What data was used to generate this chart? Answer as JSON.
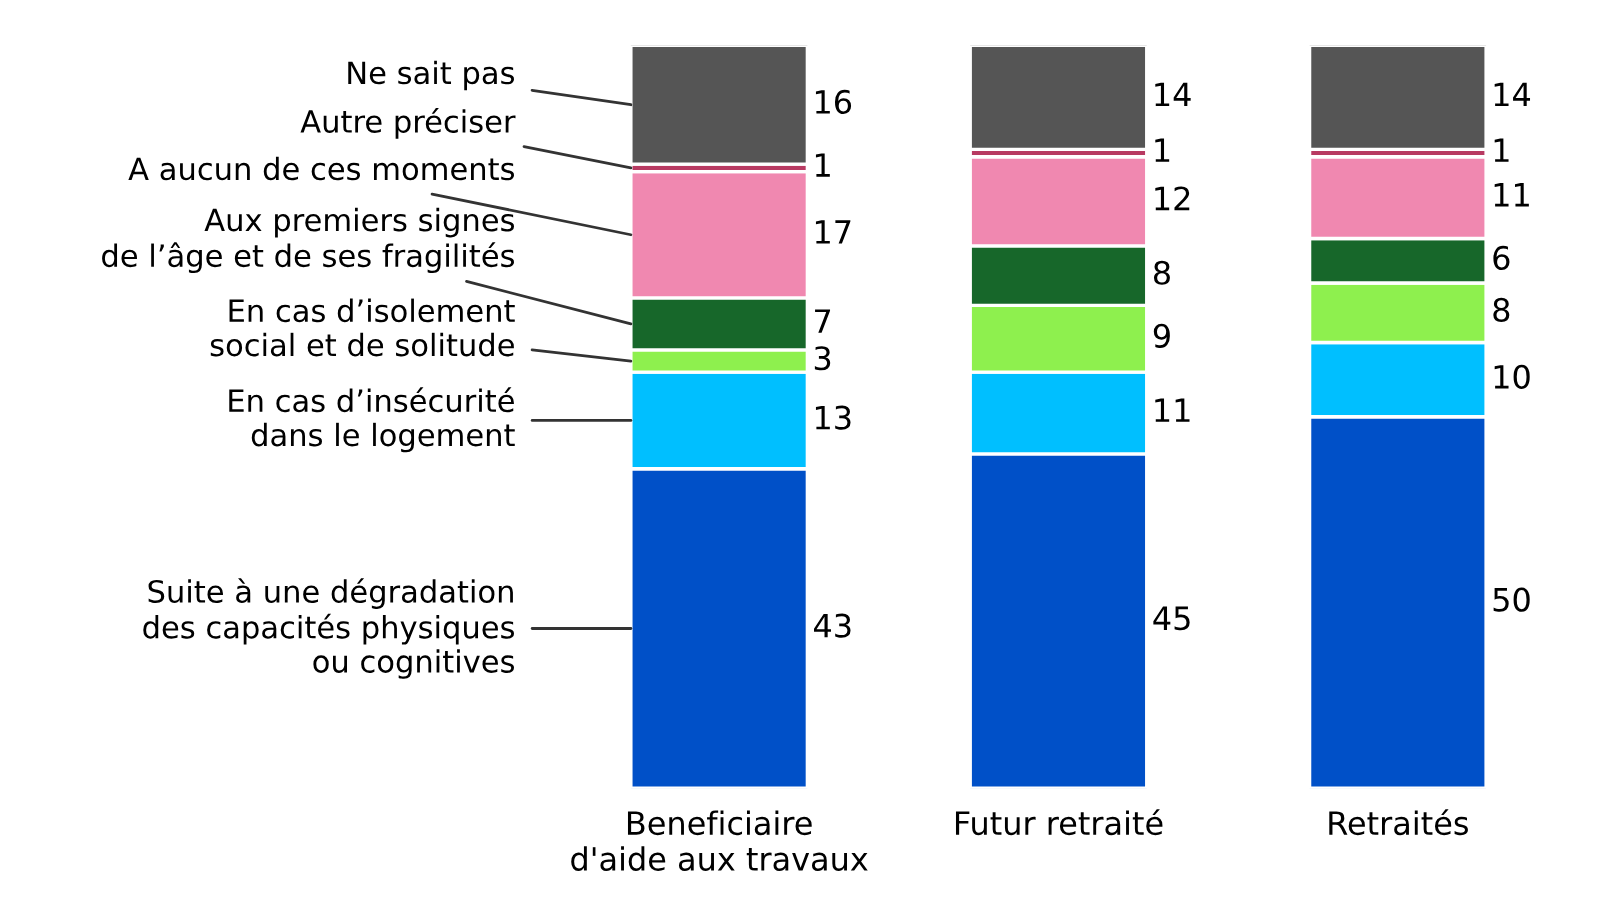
{
  "chart_data": {
    "type": "bar",
    "stacked": true,
    "data_labels": true,
    "legend": false,
    "grid": false,
    "tick_labels": "x",
    "categories": [
      "Beneficiaire\nd'aide aux travaux",
      "Futur retraité",
      "Retraités"
    ],
    "series": [
      {
        "name": "Suite à une dégradation\ndes capacités physiques\nou cognitives",
        "color": "#0050c8",
        "values": [
          43,
          45,
          50
        ]
      },
      {
        "name": "En cas d’insécurité\ndans le logement",
        "color": "#00bfff",
        "values": [
          13,
          11,
          10
        ]
      },
      {
        "name": "En cas d’isolement\nsocial et de solitude",
        "color": "#8ef04e",
        "values": [
          3,
          9,
          8
        ]
      },
      {
        "name": "Aux premiers signes\nde l’âge et de ses fragilités",
        "color": "#17672a",
        "values": [
          7,
          8,
          6
        ]
      },
      {
        "name": "A aucun de ces moments",
        "color": "#f088b0",
        "values": [
          17,
          12,
          11
        ]
      },
      {
        "name": "Autre préciser",
        "color": "#b83a62",
        "values": [
          1,
          1,
          1
        ]
      },
      {
        "name": "Ne sait pas",
        "color": "#555555",
        "values": [
          16,
          14,
          14
        ]
      }
    ]
  }
}
